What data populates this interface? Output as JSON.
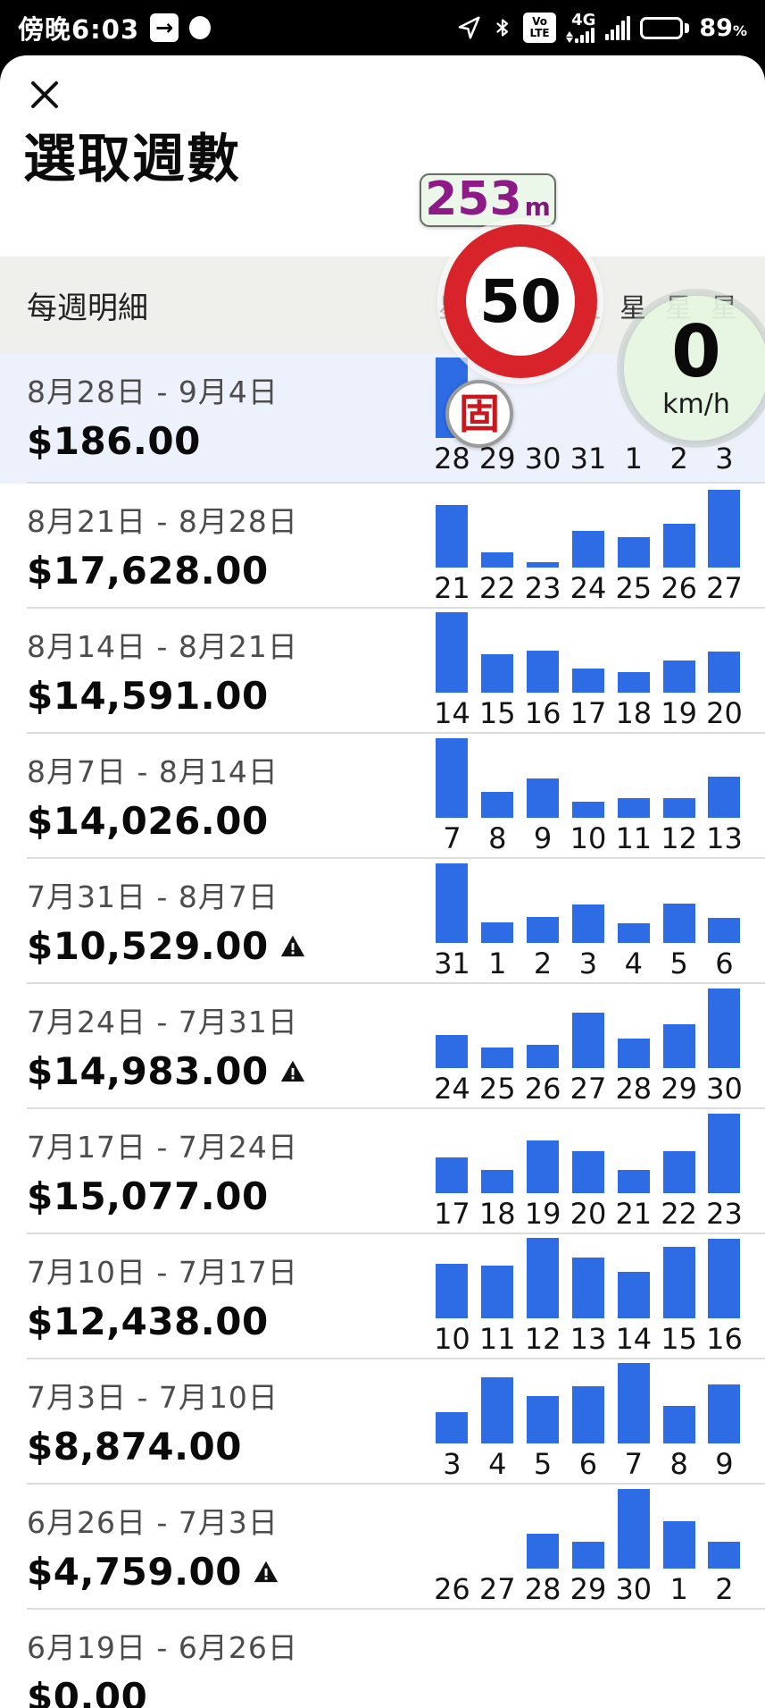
{
  "status_bar": {
    "time": "傍晚6:03",
    "battery_percent": "89",
    "percent_sign": "%",
    "network_label": "4G",
    "volte_line1": "Vo",
    "volte_line2": "LTE"
  },
  "sheet": {
    "close_glyph": "✕",
    "title": "選取週數",
    "list_header": "每週明細",
    "weekday_headers": [
      "星期日",
      "星期一",
      "星期二",
      "星期三",
      "星期四",
      "星期五",
      "星期六"
    ]
  },
  "weeks": [
    {
      "range": "8月28日 - 9月4日",
      "amount": "$186.00",
      "warning": false,
      "selected": true,
      "days": [
        "28",
        "29",
        "30",
        "31",
        "1",
        "2",
        "3"
      ],
      "bar_values": [
        1,
        0,
        0,
        0,
        0,
        0,
        0
      ]
    },
    {
      "range": "8月21日 - 8月28日",
      "amount": "$17,628.00",
      "warning": false,
      "selected": false,
      "days": [
        "21",
        "22",
        "23",
        "24",
        "25",
        "26",
        "27"
      ],
      "bar_values": [
        0.78,
        0.19,
        0.07,
        0.46,
        0.38,
        0.54,
        0.97
      ]
    },
    {
      "range": "8月14日 - 8月21日",
      "amount": "$14,591.00",
      "warning": false,
      "selected": false,
      "days": [
        "14",
        "15",
        "16",
        "17",
        "18",
        "19",
        "20"
      ],
      "bar_values": [
        1,
        0.48,
        0.52,
        0.3,
        0.26,
        0.4,
        0.51
      ]
    },
    {
      "range": "8月7日 - 8月14日",
      "amount": "$14,026.00",
      "warning": false,
      "selected": false,
      "days": [
        "7",
        "8",
        "9",
        "10",
        "11",
        "12",
        "13"
      ],
      "bar_values": [
        0.99,
        0.32,
        0.49,
        0.2,
        0.24,
        0.24,
        0.51
      ]
    },
    {
      "range": "7月31日 - 8月7日",
      "amount": "$10,529.00",
      "warning": true,
      "selected": false,
      "days": [
        "31",
        "1",
        "2",
        "3",
        "4",
        "5",
        "6"
      ],
      "bar_values": [
        0.99,
        0.26,
        0.32,
        0.48,
        0.24,
        0.49,
        0.31
      ]
    },
    {
      "range": "7月24日 - 7月31日",
      "amount": "$14,983.00",
      "warning": true,
      "selected": false,
      "days": [
        "24",
        "25",
        "26",
        "27",
        "28",
        "29",
        "30"
      ],
      "bar_values": [
        0.41,
        0.26,
        0.29,
        0.69,
        0.37,
        0.54,
        0.99
      ]
    },
    {
      "range": "7月17日 - 7月24日",
      "amount": "$15,077.00",
      "warning": false,
      "selected": false,
      "days": [
        "17",
        "18",
        "19",
        "20",
        "21",
        "22",
        "23"
      ],
      "bar_values": [
        0.44,
        0.29,
        0.66,
        0.52,
        0.29,
        0.52,
        0.99
      ]
    },
    {
      "range": "7月10日 - 7月17日",
      "amount": "$12,438.00",
      "warning": false,
      "selected": false,
      "days": [
        "10",
        "11",
        "12",
        "13",
        "14",
        "15",
        "16"
      ],
      "bar_values": [
        0.68,
        0.65,
        1,
        0.76,
        0.58,
        0.89,
        0.99
      ]
    },
    {
      "range": "7月3日 - 7月10日",
      "amount": "$8,874.00",
      "warning": false,
      "selected": false,
      "days": [
        "3",
        "4",
        "5",
        "6",
        "7",
        "8",
        "9"
      ],
      "bar_values": [
        0.39,
        0.82,
        0.59,
        0.71,
        1,
        0.47,
        0.73
      ]
    },
    {
      "range": "6月26日 - 7月3日",
      "amount": "$4,759.00",
      "warning": true,
      "selected": false,
      "days": [
        "26",
        "27",
        "28",
        "29",
        "30",
        "1",
        "2"
      ],
      "bar_values": [
        0,
        0,
        0.43,
        0.33,
        0.99,
        0.59,
        0.33
      ]
    },
    {
      "range": "6月19日 - 6月26日",
      "amount": "$0.00",
      "warning": false,
      "selected": false,
      "days": [],
      "bar_values": []
    }
  ],
  "hud": {
    "distance_value": "253",
    "distance_unit": "m",
    "speed_limit": "50",
    "camera_badge": "固",
    "speed_value": "0",
    "speed_unit": "km/h"
  },
  "colors": {
    "bar_blue": "#2d6ce4",
    "selected_row_bg": "#edf1fb",
    "header_band_bg": "#efefec",
    "sign_red": "#d8232a",
    "camera_red": "#c9181d",
    "distance_purple": "#8e1a88",
    "hud_green_bg": "#e5f6e0"
  }
}
